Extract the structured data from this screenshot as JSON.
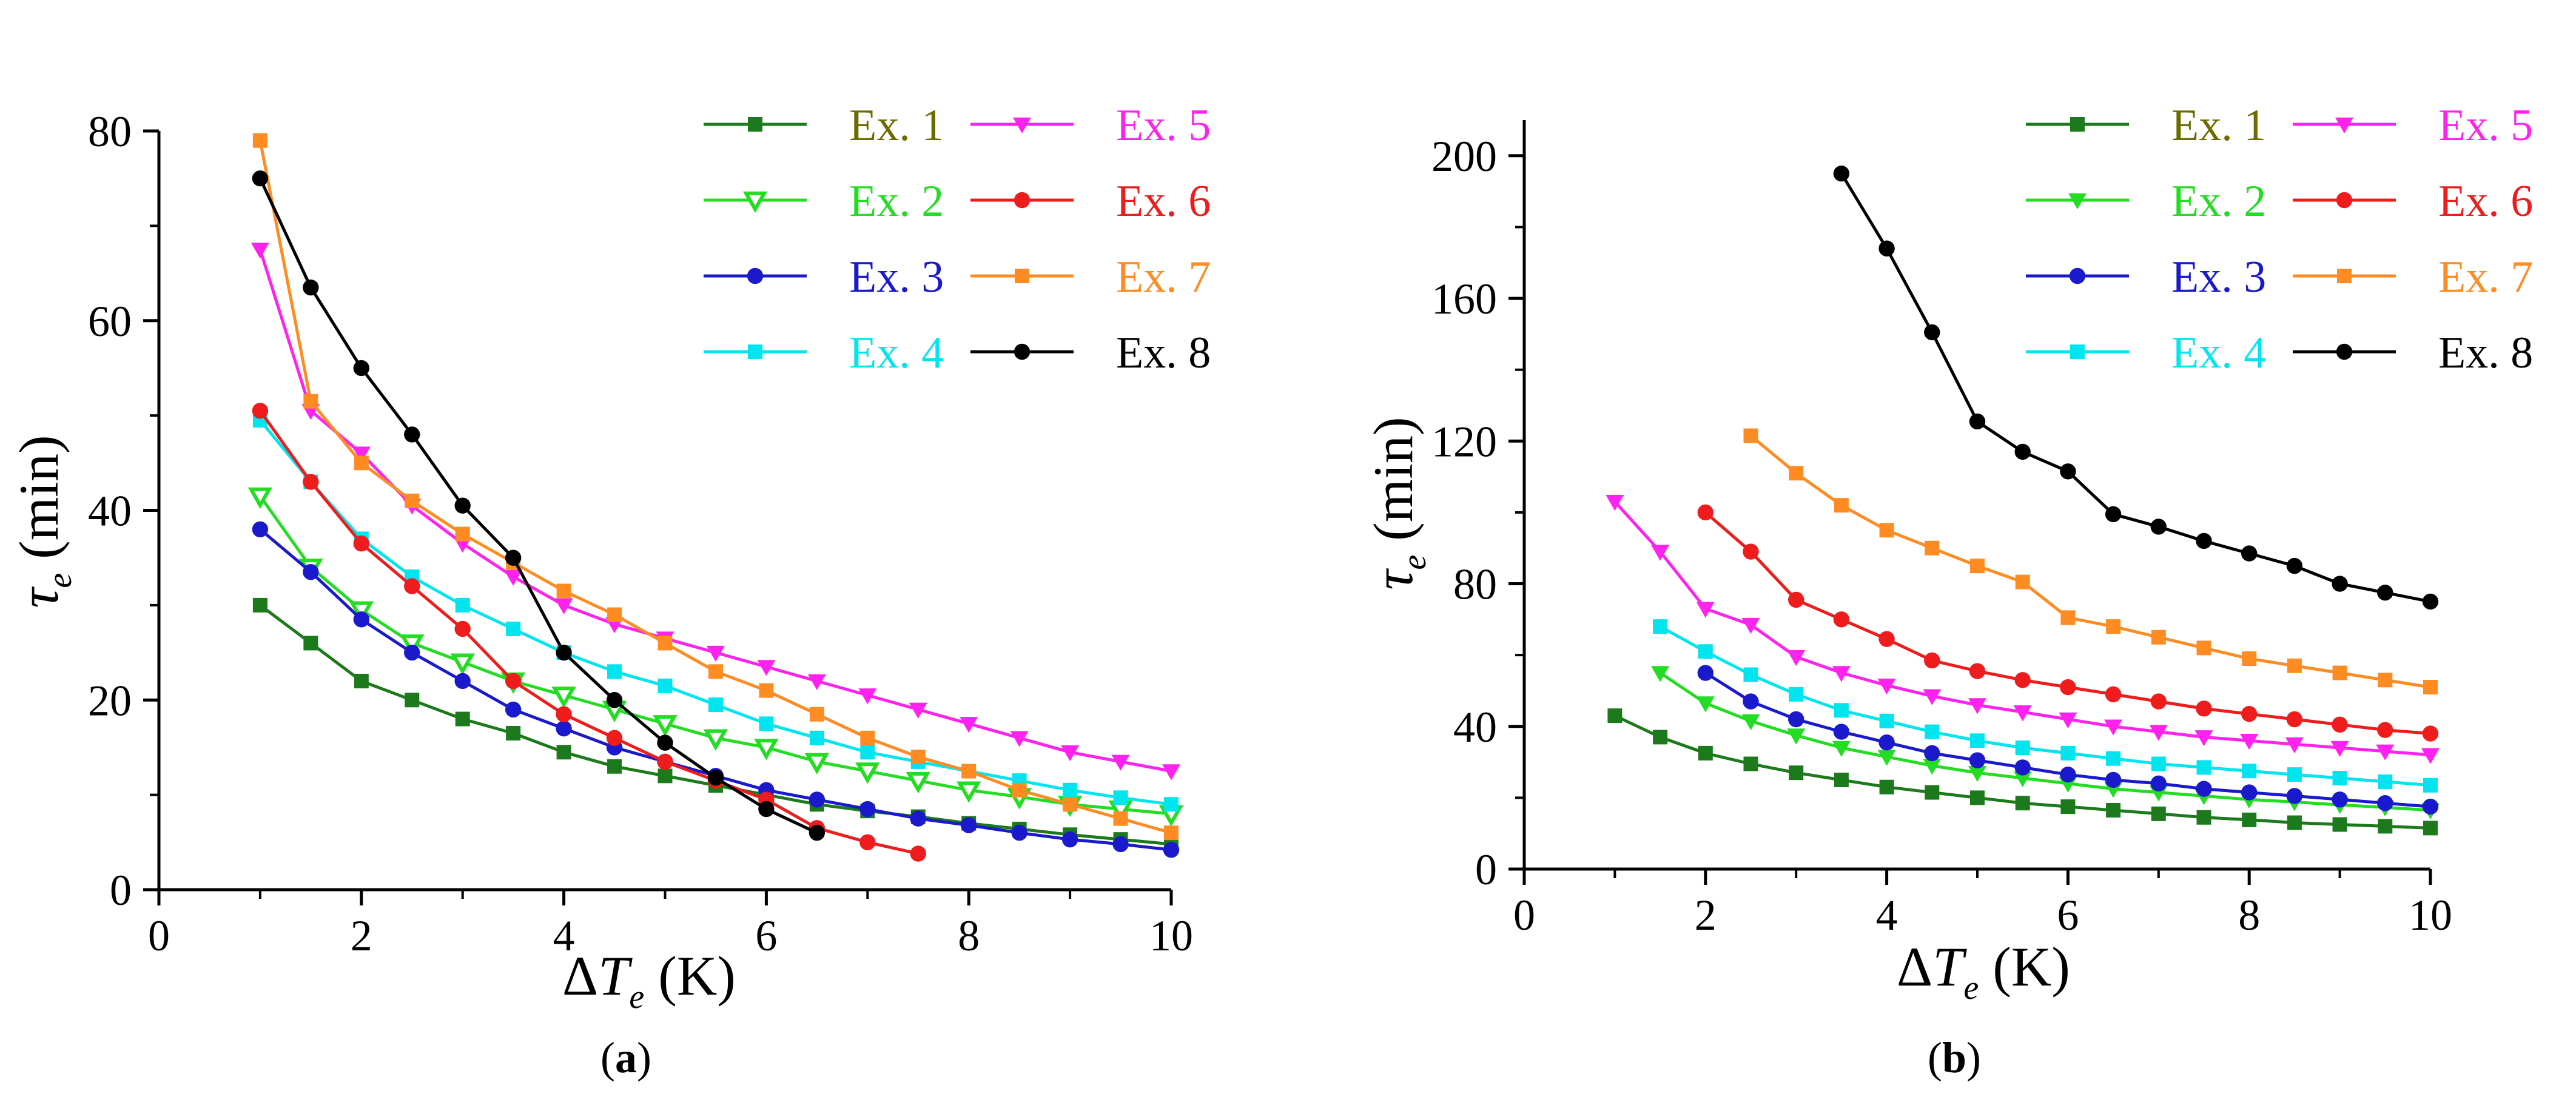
{
  "chart_data": [
    {
      "type": "line",
      "caption_letter": "a",
      "xlabel": "ΔT",
      "xlabel_sub": "e",
      "xlabel_unit": "(K)",
      "ylabel": "τ",
      "ylabel_sub": "e",
      "ylabel_unit": "(min)",
      "xlim": [
        0,
        10
      ],
      "ylim": [
        0,
        80
      ],
      "xticks": [
        0,
        2,
        4,
        6,
        8,
        10
      ],
      "yticks": [
        0,
        20,
        40,
        60,
        80
      ],
      "legend_position": "top-right",
      "series": [
        {
          "name": "Ex. 1",
          "color": "#1c7a1c",
          "marker": "square-filled",
          "x": [
            1,
            1.5,
            2,
            2.5,
            3,
            3.5,
            4,
            4.5,
            5,
            5.5,
            6,
            6.5,
            7,
            7.5,
            8,
            8.5,
            9,
            9.5,
            10
          ],
          "y": [
            30,
            26,
            22,
            20,
            18,
            16.5,
            14.5,
            13,
            12,
            11,
            10,
            9,
            8.3,
            7.7,
            7,
            6.4,
            5.8,
            5.3,
            4.8
          ]
        },
        {
          "name": "Ex. 2",
          "color": "#22dd22",
          "marker": "triangle-down-open",
          "x": [
            1,
            1.5,
            2,
            2.5,
            3,
            3.5,
            4,
            4.5,
            5,
            5.5,
            6,
            6.5,
            7,
            7.5,
            8,
            8.5,
            9,
            9.5,
            10
          ],
          "y": [
            41.5,
            34,
            29.5,
            26,
            24,
            22,
            20.5,
            19,
            17.5,
            16,
            15,
            13.5,
            12.5,
            11.5,
            10.5,
            9.8,
            9,
            8.5,
            8
          ]
        },
        {
          "name": "Ex. 3",
          "color": "#1a1acc",
          "marker": "circle-filled",
          "x": [
            1,
            1.5,
            2,
            2.5,
            3,
            3.5,
            4,
            4.5,
            5,
            5.5,
            6,
            6.5,
            7,
            7.5,
            8,
            8.5,
            9,
            9.5,
            10
          ],
          "y": [
            38,
            33.5,
            28.5,
            25,
            22,
            19,
            17,
            15,
            13.5,
            12,
            10.5,
            9.5,
            8.5,
            7.5,
            6.8,
            6,
            5.3,
            4.8,
            4.2
          ]
        },
        {
          "name": "Ex. 4",
          "color": "#00e5ee",
          "marker": "square-filled",
          "x": [
            1,
            1.5,
            2,
            2.5,
            3,
            3.5,
            4,
            4.5,
            5,
            5.5,
            6,
            6.5,
            7,
            7.5,
            8,
            8.5,
            9,
            9.5,
            10
          ],
          "y": [
            49.5,
            43,
            37,
            33,
            30,
            27.5,
            25,
            23,
            21.5,
            19.5,
            17.5,
            16,
            14.5,
            13.5,
            12.5,
            11.5,
            10.5,
            9.7,
            9
          ]
        },
        {
          "name": "Ex. 5",
          "color": "#ff22ee",
          "marker": "triangle-down-filled",
          "x": [
            1,
            1.5,
            2,
            2.5,
            3,
            3.5,
            4,
            4.5,
            5,
            5.5,
            6,
            6.5,
            7,
            7.5,
            8,
            8.5,
            9,
            9.5,
            10
          ],
          "y": [
            67.5,
            50.5,
            46,
            40.5,
            36.5,
            33,
            30,
            28,
            26.5,
            25,
            23.5,
            22,
            20.5,
            19,
            17.5,
            16,
            14.5,
            13.5,
            12.5
          ]
        },
        {
          "name": "Ex. 6",
          "color": "#ee1c1c",
          "marker": "circle-filled",
          "x": [
            1,
            1.5,
            2,
            2.5,
            3,
            3.5,
            4,
            4.5,
            5,
            5.5,
            6,
            6.5,
            7,
            7.5
          ],
          "y": [
            50.5,
            43,
            36.5,
            32,
            27.5,
            22,
            18.5,
            16,
            13.5,
            11.5,
            9.5,
            6.5,
            5,
            3.8
          ]
        },
        {
          "name": "Ex. 7",
          "color": "#ff8c22",
          "marker": "square-filled",
          "x": [
            1,
            1.5,
            2,
            2.5,
            3,
            3.5,
            4,
            4.5,
            5,
            5.5,
            6,
            6.5,
            7,
            7.5,
            8,
            8.5,
            9,
            9.5,
            10
          ],
          "y": [
            79,
            51.5,
            45,
            41,
            37.5,
            34.5,
            31.5,
            29,
            26,
            23,
            21,
            18.5,
            16,
            14,
            12.5,
            10.5,
            9,
            7.5,
            6
          ]
        },
        {
          "name": "Ex. 8",
          "color": "#000000",
          "marker": "circle-filled",
          "x": [
            1,
            1.5,
            2,
            2.5,
            3,
            3.5,
            4,
            4.5,
            5,
            5.5,
            6,
            6.5
          ],
          "y": [
            75,
            63.5,
            55,
            48,
            40.5,
            35,
            25,
            20,
            15.5,
            11.8,
            8.5,
            6
          ]
        }
      ]
    },
    {
      "type": "line",
      "caption_letter": "b",
      "xlabel": "ΔT",
      "xlabel_sub": "e",
      "xlabel_unit": "(K)",
      "ylabel": "τ",
      "ylabel_sub": "e",
      "ylabel_unit": "(min)",
      "xlim": [
        0,
        10
      ],
      "ylim": [
        0,
        210
      ],
      "xticks": [
        0,
        2,
        4,
        6,
        8,
        10
      ],
      "yticks": [
        0,
        40,
        80,
        120,
        160,
        200
      ],
      "legend_position": "top-right",
      "series": [
        {
          "name": "Ex. 1",
          "color": "#1c7a1c",
          "marker": "square-filled",
          "x": [
            1,
            1.5,
            2,
            2.5,
            3,
            3.5,
            4,
            4.5,
            5,
            5.5,
            6,
            6.5,
            7,
            7.5,
            8,
            8.5,
            9,
            9.5,
            10
          ],
          "y": [
            43,
            37,
            32.5,
            29.5,
            27,
            25,
            23,
            21.5,
            20,
            18.5,
            17.5,
            16.5,
            15.5,
            14.5,
            13.8,
            13,
            12.5,
            12,
            11.5
          ]
        },
        {
          "name": "Ex. 2",
          "color": "#22dd22",
          "marker": "triangle-down-filled",
          "x": [
            1.5,
            2,
            2.5,
            3,
            3.5,
            4,
            4.5,
            5,
            5.5,
            6,
            6.5,
            7,
            7.5,
            8,
            8.5,
            9,
            9.5,
            10
          ],
          "y": [
            55,
            46.5,
            41.5,
            37.5,
            34,
            31.5,
            29,
            27,
            25.5,
            24,
            22.5,
            21.5,
            20.5,
            19.5,
            18.8,
            18,
            17.3,
            16.5
          ]
        },
        {
          "name": "Ex. 3",
          "color": "#1a1acc",
          "marker": "circle-filled",
          "x": [
            2,
            2.5,
            3,
            3.5,
            4,
            4.5,
            5,
            5.5,
            6,
            6.5,
            7,
            7.5,
            8,
            8.5,
            9,
            9.5,
            10
          ],
          "y": [
            55,
            47,
            42,
            38.5,
            35.5,
            32.5,
            30.5,
            28.5,
            26.5,
            25,
            24,
            22.5,
            21.5,
            20.5,
            19.5,
            18.5,
            17.5
          ]
        },
        {
          "name": "Ex. 4",
          "color": "#00e5ee",
          "marker": "square-filled",
          "x": [
            1.5,
            2,
            2.5,
            3,
            3.5,
            4,
            4.5,
            5,
            5.5,
            6,
            6.5,
            7,
            7.5,
            8,
            8.5,
            9,
            9.5,
            10
          ],
          "y": [
            68,
            61,
            54.5,
            49,
            44.5,
            41.5,
            38.5,
            36,
            34,
            32.5,
            31,
            29.5,
            28.5,
            27.5,
            26.5,
            25.5,
            24.5,
            23.5
          ]
        },
        {
          "name": "Ex. 5",
          "color": "#ff22ee",
          "marker": "triangle-down-filled",
          "x": [
            1,
            1.5,
            2,
            2.5,
            3,
            3.5,
            4,
            4.5,
            5,
            5.5,
            6,
            6.5,
            7,
            7.5,
            8,
            8.5,
            9,
            9.5,
            10
          ],
          "y": [
            103,
            89,
            73,
            68.5,
            59.5,
            55,
            51.5,
            48.5,
            46,
            44,
            42,
            40,
            38.5,
            37,
            36,
            35,
            34,
            33,
            32
          ]
        },
        {
          "name": "Ex. 6",
          "color": "#ee1c1c",
          "marker": "circle-filled",
          "x": [
            2,
            2.5,
            3,
            3.5,
            4,
            4.5,
            5,
            5.5,
            6,
            6.5,
            7,
            7.5,
            8,
            8.5,
            9,
            9.5,
            10
          ],
          "y": [
            100,
            89,
            75.5,
            70,
            64.5,
            58.5,
            55.5,
            53,
            51,
            49,
            47,
            45,
            43.5,
            42,
            40.5,
            39,
            38
          ]
        },
        {
          "name": "Ex. 7",
          "color": "#ff8c22",
          "marker": "square-filled",
          "x": [
            2.5,
            3,
            3.5,
            4,
            4.5,
            5,
            5.5,
            6,
            6.5,
            7,
            7.5,
            8,
            8.5,
            9,
            9.5,
            10
          ],
          "y": [
            121.5,
            111,
            102,
            95,
            90,
            85,
            80.5,
            70.5,
            68,
            65,
            62,
            59,
            57,
            55,
            53,
            51
          ]
        },
        {
          "name": "Ex. 8",
          "color": "#000000",
          "marker": "circle-filled",
          "x": [
            3.5,
            4,
            4.5,
            5,
            5.5,
            6,
            6.5,
            7,
            7.5,
            8,
            8.5,
            9,
            9.5,
            10
          ],
          "y": [
            195,
            174,
            150.5,
            125.5,
            117,
            111.5,
            99.5,
            96,
            92,
            88.5,
            85,
            80,
            77.5,
            75
          ]
        }
      ]
    }
  ]
}
